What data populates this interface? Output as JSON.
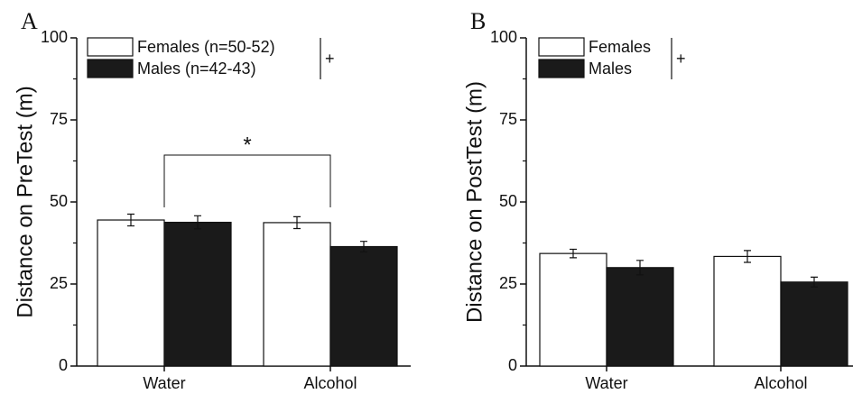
{
  "chart_data": [
    {
      "type": "bar",
      "panel_label": "A",
      "y_label": "Distance on PreTest (m)",
      "categories": [
        "Water",
        "Alcohol"
      ],
      "series": [
        {
          "name": "Females (n=50-52)",
          "color": "#ffffff",
          "values": [
            44.5,
            43.7
          ],
          "errors": [
            1.8,
            1.8
          ]
        },
        {
          "name": "Males (n=42-43)",
          "color": "#1a1a1a",
          "values": [
            43.8,
            36.4
          ],
          "errors": [
            2.0,
            1.6
          ]
        }
      ],
      "ylim": [
        0,
        100
      ],
      "yticks": [
        0,
        25,
        50,
        75,
        100
      ],
      "minor_yticks": [
        12.5,
        37.5,
        62.5,
        87.5
      ],
      "significance": "*",
      "effect_marker": "+"
    },
    {
      "type": "bar",
      "panel_label": "B",
      "y_label": "Distance on PostTest (m)",
      "categories": [
        "Water",
        "Alcohol"
      ],
      "series": [
        {
          "name": "Females",
          "color": "#ffffff",
          "values": [
            34.3,
            33.4
          ],
          "errors": [
            1.3,
            1.8
          ]
        },
        {
          "name": "Males",
          "color": "#1a1a1a",
          "values": [
            30.0,
            25.6
          ],
          "errors": [
            2.2,
            1.5
          ]
        }
      ],
      "ylim": [
        0,
        100
      ],
      "yticks": [
        0,
        25,
        50,
        75,
        100
      ],
      "minor_yticks": [
        12.5,
        37.5,
        62.5,
        87.5
      ],
      "effect_marker": "+"
    }
  ]
}
